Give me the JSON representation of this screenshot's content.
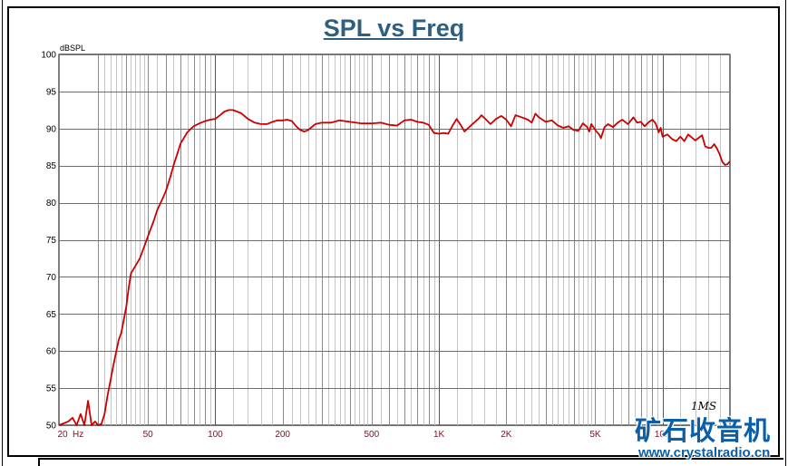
{
  "chart_data": {
    "type": "line",
    "title": "SPL vs Freq",
    "ylabel": "dBSPL",
    "x_unit_label": "Hz",
    "x_scale": "log",
    "xlim": [
      20,
      20000
    ],
    "ylim": [
      50,
      100
    ],
    "grid": true,
    "y_ticks": [
      100,
      95,
      90,
      85,
      80,
      75,
      70,
      65,
      60,
      55,
      50
    ],
    "x_ticks": [
      {
        "value": 20,
        "label": "20"
      },
      {
        "value": 50,
        "label": "50"
      },
      {
        "value": 100,
        "label": "100"
      },
      {
        "value": 200,
        "label": "200"
      },
      {
        "value": 500,
        "label": "500"
      },
      {
        "value": 1000,
        "label": "1K"
      },
      {
        "value": 2000,
        "label": "2K"
      },
      {
        "value": 5000,
        "label": "5K"
      },
      {
        "value": 10000,
        "label": "10K"
      }
    ],
    "series": [
      {
        "color": "#cc0000",
        "points": [
          [
            20,
            50
          ],
          [
            22,
            50.5
          ],
          [
            23,
            51
          ],
          [
            24,
            50
          ],
          [
            25,
            51.5
          ],
          [
            26,
            50
          ],
          [
            27,
            53.3
          ],
          [
            28,
            50
          ],
          [
            29,
            50.5
          ],
          [
            30,
            50
          ],
          [
            31,
            50.2
          ],
          [
            32,
            51.5
          ],
          [
            33,
            54
          ],
          [
            34,
            56
          ],
          [
            35,
            58
          ],
          [
            37,
            61.5
          ],
          [
            38,
            62.5
          ],
          [
            40,
            66
          ],
          [
            41,
            68.5
          ],
          [
            42,
            70.5
          ],
          [
            44,
            71.5
          ],
          [
            46,
            72.5
          ],
          [
            48,
            74
          ],
          [
            50,
            75.5
          ],
          [
            53,
            77.5
          ],
          [
            55,
            79
          ],
          [
            58,
            80.5
          ],
          [
            60,
            81.5
          ],
          [
            63,
            83.5
          ],
          [
            65,
            85
          ],
          [
            70,
            88
          ],
          [
            75,
            89.5
          ],
          [
            80,
            90.3
          ],
          [
            85,
            90.7
          ],
          [
            90,
            91
          ],
          [
            95,
            91.2
          ],
          [
            100,
            91.3
          ],
          [
            105,
            91.8
          ],
          [
            110,
            92.3
          ],
          [
            115,
            92.5
          ],
          [
            120,
            92.5
          ],
          [
            130,
            92.1
          ],
          [
            140,
            91.3
          ],
          [
            150,
            90.8
          ],
          [
            160,
            90.6
          ],
          [
            170,
            90.6
          ],
          [
            180,
            90.9
          ],
          [
            190,
            91.1
          ],
          [
            200,
            91.1
          ],
          [
            210,
            91.2
          ],
          [
            220,
            91
          ],
          [
            230,
            90.3
          ],
          [
            240,
            89.8
          ],
          [
            250,
            89.6
          ],
          [
            260,
            89.8
          ],
          [
            280,
            90.6
          ],
          [
            300,
            90.8
          ],
          [
            330,
            90.8
          ],
          [
            360,
            91.1
          ],
          [
            400,
            90.9
          ],
          [
            450,
            90.7
          ],
          [
            500,
            90.7
          ],
          [
            550,
            90.8
          ],
          [
            600,
            90.5
          ],
          [
            650,
            90.4
          ],
          [
            700,
            91.1
          ],
          [
            750,
            91.2
          ],
          [
            800,
            90.9
          ],
          [
            850,
            90.8
          ],
          [
            900,
            90.5
          ],
          [
            950,
            89.4
          ],
          [
            1000,
            89.3
          ],
          [
            1050,
            89.4
          ],
          [
            1100,
            89.3
          ],
          [
            1150,
            90.4
          ],
          [
            1200,
            91.3
          ],
          [
            1250,
            90.5
          ],
          [
            1300,
            89.6
          ],
          [
            1400,
            90.5
          ],
          [
            1500,
            91.3
          ],
          [
            1550,
            91.8
          ],
          [
            1600,
            91.4
          ],
          [
            1700,
            90.6
          ],
          [
            1800,
            91.3
          ],
          [
            1900,
            91.7
          ],
          [
            2000,
            91.2
          ],
          [
            2100,
            90.3
          ],
          [
            2200,
            91.8
          ],
          [
            2300,
            91.6
          ],
          [
            2500,
            91.2
          ],
          [
            2600,
            90.8
          ],
          [
            2700,
            92
          ],
          [
            2800,
            91.5
          ],
          [
            3000,
            90.9
          ],
          [
            3200,
            91.1
          ],
          [
            3400,
            90.4
          ],
          [
            3600,
            90.1
          ],
          [
            3800,
            90.3
          ],
          [
            4000,
            89.8
          ],
          [
            4200,
            89.7
          ],
          [
            4400,
            90.7
          ],
          [
            4600,
            90.2
          ],
          [
            4700,
            89.6
          ],
          [
            4800,
            90.6
          ],
          [
            5000,
            89.8
          ],
          [
            5200,
            89.2
          ],
          [
            5300,
            88.7
          ],
          [
            5500,
            90.2
          ],
          [
            5700,
            90.6
          ],
          [
            6000,
            90.2
          ],
          [
            6300,
            90.8
          ],
          [
            6600,
            91.2
          ],
          [
            7000,
            90.6
          ],
          [
            7400,
            91.5
          ],
          [
            7700,
            90.8
          ],
          [
            8000,
            90.9
          ],
          [
            8300,
            90.3
          ],
          [
            8700,
            90.9
          ],
          [
            9000,
            91.2
          ],
          [
            9300,
            90.7
          ],
          [
            9600,
            89.5
          ],
          [
            9800,
            90.1
          ],
          [
            10000,
            88.9
          ],
          [
            10500,
            89.2
          ],
          [
            11000,
            88.6
          ],
          [
            11500,
            88.3
          ],
          [
            12000,
            88.9
          ],
          [
            12500,
            88.3
          ],
          [
            13000,
            89.2
          ],
          [
            14000,
            88.4
          ],
          [
            15000,
            89.1
          ],
          [
            15500,
            87.6
          ],
          [
            16000,
            87.4
          ],
          [
            16500,
            87.4
          ],
          [
            17000,
            87.9
          ],
          [
            17500,
            87.3
          ],
          [
            18000,
            86.5
          ],
          [
            18500,
            85.5
          ],
          [
            19000,
            85.1
          ],
          [
            19500,
            85.2
          ],
          [
            20000,
            85.6
          ]
        ]
      }
    ]
  },
  "watermark": {
    "brand_cn": "矿石收音机",
    "url": "www.crystalradio.cn",
    "signature": "1MS"
  }
}
